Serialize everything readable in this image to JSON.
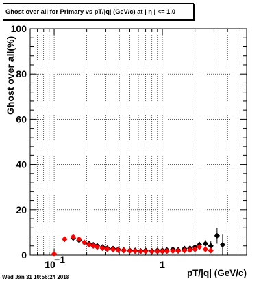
{
  "timestamp": "Wed Jan 31 10:56:24 2018",
  "chart_data": {
    "type": "scatter",
    "title": "Ghost over all for Primary vs pT/|q| (GeV/c) at |  η | <= 1.0",
    "xlabel": "pT/|q| (GeV/c)",
    "ylabel": "Ghost over all(%)",
    "x_scale": "log",
    "xlim": [
      0.06,
      6.0
    ],
    "ylim": [
      0,
      100
    ],
    "yticks": [
      0,
      20,
      40,
      60,
      80,
      100
    ],
    "xticks": [
      {
        "value": 0.1,
        "label": "10",
        "exp": "−1"
      },
      {
        "value": 1,
        "label": "1"
      }
    ],
    "grid": true,
    "series": [
      {
        "color": "#000000",
        "marker": "diamond",
        "x": [
          0.1,
          0.125,
          0.15,
          0.17,
          0.19,
          0.21,
          0.23,
          0.25,
          0.28,
          0.31,
          0.35,
          0.39,
          0.44,
          0.5,
          0.56,
          0.63,
          0.7,
          0.8,
          0.9,
          1.0,
          1.1,
          1.25,
          1.4,
          1.6,
          1.8,
          2.0,
          2.2,
          2.5,
          2.8,
          3.2,
          3.6
        ],
        "y": [
          0.5,
          7,
          7.5,
          6.5,
          5.5,
          5,
          4.5,
          4,
          3.5,
          3,
          2.8,
          2.5,
          2.2,
          2,
          2,
          1.8,
          2,
          1.8,
          2,
          2,
          2.2,
          2.5,
          2.2,
          2.8,
          3,
          3.5,
          4.5,
          5,
          4,
          8.5,
          4.5
        ],
        "err": [
          0.5,
          0.5,
          0.5,
          0.4,
          0.4,
          0.4,
          0.3,
          0.3,
          0.3,
          0.3,
          0.3,
          0.3,
          0.3,
          0.3,
          0.3,
          0.3,
          0.4,
          0.4,
          0.4,
          0.5,
          0.5,
          0.6,
          0.6,
          0.8,
          0.9,
          1.0,
          1.3,
          1.6,
          2.0,
          3.5,
          4.5
        ]
      },
      {
        "color": "#ff0000",
        "marker": "diamond",
        "x": [
          0.1,
          0.125,
          0.15,
          0.17,
          0.19,
          0.21,
          0.23,
          0.25,
          0.28,
          0.31,
          0.35,
          0.39,
          0.44,
          0.5,
          0.56,
          0.63,
          0.7,
          0.8,
          0.9,
          1.0,
          1.1,
          1.25,
          1.4,
          1.6,
          1.8,
          2.0,
          2.2,
          2.5,
          2.8
        ],
        "y": [
          0.5,
          7,
          8,
          7,
          5.5,
          4.5,
          4,
          3.5,
          3,
          2.6,
          2.4,
          2.2,
          2,
          1.8,
          1.7,
          1.6,
          1.6,
          1.5,
          1.6,
          1.6,
          1.7,
          1.8,
          1.8,
          2,
          2.2,
          2.5,
          3.5,
          2.5,
          2
        ]
      }
    ]
  }
}
